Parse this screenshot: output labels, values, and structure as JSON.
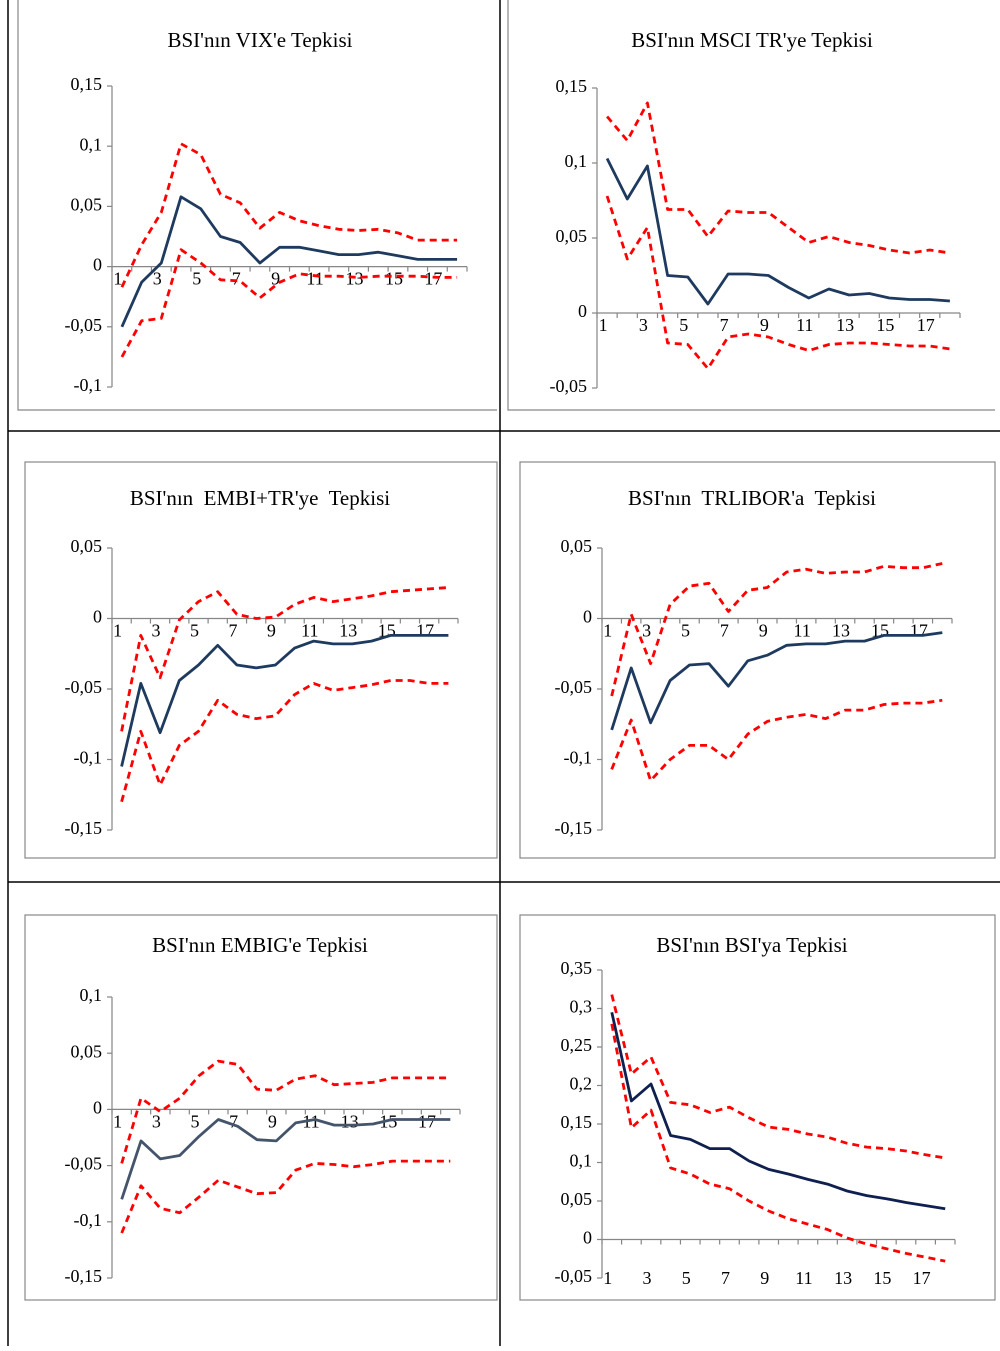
{
  "chart_data": [
    {
      "type": "line",
      "title": "BSI'nın VIX'e Tepkisi",
      "categories": [
        "1",
        null,
        "3",
        null,
        "5",
        null,
        "7",
        null,
        "9",
        null,
        "11",
        null,
        "13",
        null,
        "15",
        null,
        "17",
        null
      ],
      "ylim": [
        -0.1,
        0.15
      ],
      "yticks": [
        {
          "value": -0.1,
          "label": "-0,1"
        },
        {
          "value": -0.05,
          "label": "-0,05"
        },
        0,
        {
          "value": 0.05,
          "label": "0,05"
        },
        {
          "value": 0.1,
          "label": "0,1"
        },
        {
          "value": 0.15,
          "label": "0,15"
        }
      ],
      "series": [
        {
          "color": "#ff0000",
          "style": "dashed",
          "values": [
            -0.017,
            0.018,
            0.045,
            0.102,
            0.093,
            0.06,
            0.053,
            0.032,
            0.045,
            0.038,
            0.034,
            0.031,
            0.03,
            0.031,
            0.028,
            0.022,
            0.022,
            0.022
          ]
        },
        {
          "color": "#1f3a5f",
          "style": "solid",
          "values": [
            -0.05,
            -0.013,
            0.003,
            0.058,
            0.048,
            0.025,
            0.02,
            0.003,
            0.016,
            0.016,
            0.013,
            0.01,
            0.01,
            0.012,
            0.009,
            0.006,
            0.006,
            0.006
          ]
        },
        {
          "color": "#ff0000",
          "style": "dashed",
          "values": [
            -0.075,
            -0.045,
            -0.043,
            0.014,
            0.003,
            -0.011,
            -0.012,
            -0.026,
            -0.013,
            -0.006,
            -0.008,
            -0.008,
            -0.009,
            -0.008,
            -0.008,
            -0.008,
            -0.009,
            -0.009
          ]
        }
      ]
    },
    {
      "type": "line",
      "title": "BSI'nın MSCI TR'ye Tepkisi",
      "categories": [
        "1",
        null,
        "3",
        null,
        "5",
        null,
        "7",
        null,
        "9",
        null,
        "11",
        null,
        "13",
        null,
        "15",
        null,
        "17",
        null
      ],
      "ylim": [
        -0.05,
        0.15
      ],
      "yticks": [
        {
          "value": -0.05,
          "label": "-0,05"
        },
        0,
        {
          "value": 0.05,
          "label": "0,05"
        },
        {
          "value": 0.1,
          "label": "0,1"
        },
        {
          "value": 0.15,
          "label": "0,15"
        }
      ],
      "series": [
        {
          "color": "#ff0000",
          "style": "dashed",
          "values": [
            0.131,
            0.115,
            0.14,
            0.069,
            0.069,
            0.051,
            0.068,
            0.067,
            0.067,
            0.057,
            0.047,
            0.051,
            0.047,
            0.045,
            0.042,
            0.04,
            0.042,
            0.04
          ]
        },
        {
          "color": "#1f3a5f",
          "style": "solid",
          "values": [
            0.103,
            0.076,
            0.098,
            0.025,
            0.024,
            0.006,
            0.026,
            0.026,
            0.025,
            0.017,
            0.01,
            0.016,
            0.012,
            0.013,
            0.01,
            0.009,
            0.009,
            0.008
          ]
        },
        {
          "color": "#ff0000",
          "style": "dashed",
          "values": [
            0.078,
            0.036,
            0.057,
            -0.02,
            -0.021,
            -0.037,
            -0.016,
            -0.014,
            -0.016,
            -0.021,
            -0.025,
            -0.021,
            -0.02,
            -0.02,
            -0.021,
            -0.022,
            -0.022,
            -0.024
          ]
        }
      ]
    },
    {
      "type": "line",
      "title": "BSI'nın  EMBI+TR'ye  Tepkisi",
      "categories": [
        "1",
        null,
        "3",
        null,
        "5",
        null,
        "7",
        null,
        "9",
        null,
        "11",
        null,
        "13",
        null,
        "15",
        null,
        "17",
        null
      ],
      "ylim": [
        -0.15,
        0.05
      ],
      "yticks": [
        {
          "value": -0.15,
          "label": "-0,15"
        },
        {
          "value": -0.1,
          "label": "-0,1"
        },
        {
          "value": -0.05,
          "label": "-0,05"
        },
        0,
        {
          "value": 0.05,
          "label": "0,05"
        }
      ],
      "series": [
        {
          "color": "#ff0000",
          "style": "dashed",
          "values": [
            -0.08,
            -0.012,
            -0.042,
            -0.001,
            0.012,
            0.019,
            0.003,
            0,
            0.001,
            0.01,
            0.015,
            0.012,
            0.014,
            0.016,
            0.019,
            0.02,
            0.021,
            0.022
          ]
        },
        {
          "color": "#1f3a5f",
          "style": "solid",
          "values": [
            -0.105,
            -0.046,
            -0.081,
            -0.044,
            -0.033,
            -0.019,
            -0.033,
            -0.035,
            -0.033,
            -0.021,
            -0.016,
            -0.018,
            -0.018,
            -0.016,
            -0.012,
            -0.012,
            -0.012,
            -0.012
          ]
        },
        {
          "color": "#ff0000",
          "style": "dashed",
          "values": [
            -0.13,
            -0.08,
            -0.118,
            -0.09,
            -0.08,
            -0.058,
            -0.068,
            -0.071,
            -0.069,
            -0.054,
            -0.046,
            -0.051,
            -0.049,
            -0.047,
            -0.044,
            -0.044,
            -0.046,
            -0.046
          ]
        }
      ]
    },
    {
      "type": "line",
      "title": "BSI'nın  TRLIBOR'a  Tepkisi",
      "categories": [
        "1",
        null,
        "3",
        null,
        "5",
        null,
        "7",
        null,
        "9",
        null,
        "11",
        null,
        "13",
        null,
        "15",
        null,
        "17",
        null
      ],
      "ylim": [
        -0.15,
        0.05
      ],
      "yticks": [
        {
          "value": -0.15,
          "label": "-0,15"
        },
        {
          "value": -0.1,
          "label": "-0,1"
        },
        {
          "value": -0.05,
          "label": "-0,05"
        },
        0,
        {
          "value": 0.05,
          "label": "0,05"
        }
      ],
      "series": [
        {
          "color": "#ff0000",
          "style": "dashed",
          "values": [
            -0.055,
            0.003,
            -0.032,
            0.01,
            0.023,
            0.025,
            0.005,
            0.02,
            0.022,
            0.033,
            0.035,
            0.032,
            0.033,
            0.033,
            0.037,
            0.036,
            0.036,
            0.039
          ]
        },
        {
          "color": "#1f3a5f",
          "style": "solid",
          "values": [
            -0.079,
            -0.035,
            -0.074,
            -0.044,
            -0.033,
            -0.032,
            -0.048,
            -0.03,
            -0.026,
            -0.019,
            -0.018,
            -0.018,
            -0.016,
            -0.016,
            -0.012,
            -0.012,
            -0.012,
            -0.01
          ]
        },
        {
          "color": "#ff0000",
          "style": "dashed",
          "values": [
            -0.107,
            -0.072,
            -0.115,
            -0.1,
            -0.09,
            -0.09,
            -0.1,
            -0.082,
            -0.073,
            -0.07,
            -0.068,
            -0.071,
            -0.065,
            -0.065,
            -0.061,
            -0.06,
            -0.06,
            -0.058
          ]
        }
      ]
    },
    {
      "type": "line",
      "title": "BSI'nın EMBIG'e Tepkisi",
      "categories": [
        "1",
        null,
        "3",
        null,
        "5",
        null,
        "7",
        null,
        "9",
        null,
        "11",
        null,
        "13",
        null,
        "15",
        null,
        "17",
        null
      ],
      "ylim": [
        -0.15,
        0.1
      ],
      "yticks": [
        {
          "value": -0.15,
          "label": "-0,15"
        },
        {
          "value": -0.1,
          "label": "-0,1"
        },
        {
          "value": -0.05,
          "label": "-0,05"
        },
        0,
        {
          "value": 0.05,
          "label": "0,05"
        },
        {
          "value": 0.1,
          "label": "0,1"
        }
      ],
      "series": [
        {
          "color": "#ff0000",
          "style": "dashed",
          "values": [
            -0.048,
            0.01,
            -0.002,
            0.01,
            0.03,
            0.043,
            0.04,
            0.018,
            0.017,
            0.027,
            0.03,
            0.022,
            0.023,
            0.024,
            0.028,
            0.028,
            0.028,
            0.028
          ]
        },
        {
          "color": "#44546a",
          "style": "solid",
          "values": [
            -0.08,
            -0.028,
            -0.044,
            -0.041,
            -0.024,
            -0.009,
            -0.015,
            -0.027,
            -0.028,
            -0.012,
            -0.009,
            -0.014,
            -0.014,
            -0.013,
            -0.009,
            -0.009,
            -0.009,
            -0.009
          ]
        },
        {
          "color": "#ff0000",
          "style": "dashed",
          "values": [
            -0.11,
            -0.068,
            -0.088,
            -0.092,
            -0.078,
            -0.063,
            -0.069,
            -0.075,
            -0.074,
            -0.054,
            -0.048,
            -0.049,
            -0.051,
            -0.049,
            -0.046,
            -0.046,
            -0.046,
            -0.046
          ]
        }
      ]
    },
    {
      "type": "line",
      "title": "BSI'nın BSI'ya Tepkisi",
      "categories": [
        "1",
        null,
        "3",
        null,
        "5",
        null,
        "7",
        null,
        "9",
        null,
        "11",
        null,
        "13",
        null,
        "15",
        null,
        "17",
        null
      ],
      "ylim": [
        -0.05,
        0.35
      ],
      "xlabels": "low",
      "yticks": [
        {
          "value": -0.05,
          "label": "-0,05"
        },
        0,
        {
          "value": 0.05,
          "label": "0,05"
        },
        {
          "value": 0.1,
          "label": "0,1"
        },
        {
          "value": 0.15,
          "label": "0,15"
        },
        {
          "value": 0.2,
          "label": "0,2"
        },
        {
          "value": 0.25,
          "label": "0,25"
        },
        {
          "value": 0.3,
          "label": "0,3"
        },
        {
          "value": 0.35,
          "label": "0,35"
        }
      ],
      "series": [
        {
          "color": "#ff0000",
          "style": "dashed",
          "values": [
            0.318,
            0.215,
            0.237,
            0.178,
            0.175,
            0.165,
            0.172,
            0.158,
            0.146,
            0.143,
            0.137,
            0.133,
            0.125,
            0.12,
            0.118,
            0.115,
            0.11,
            0.106
          ]
        },
        {
          "color": "#0f1f4f",
          "style": "solid",
          "values": [
            0.295,
            0.18,
            0.202,
            0.135,
            0.13,
            0.118,
            0.118,
            0.102,
            0.091,
            0.085,
            0.078,
            0.072,
            0.063,
            0.057,
            0.053,
            0.048,
            0.044,
            0.04
          ]
        },
        {
          "color": "#ff0000",
          "style": "dashed",
          "values": [
            0.28,
            0.145,
            0.168,
            0.093,
            0.085,
            0.072,
            0.066,
            0.05,
            0.037,
            0.027,
            0.02,
            0.013,
            0.002,
            -0.006,
            -0.012,
            -0.018,
            -0.023,
            -0.028
          ]
        }
      ]
    }
  ]
}
